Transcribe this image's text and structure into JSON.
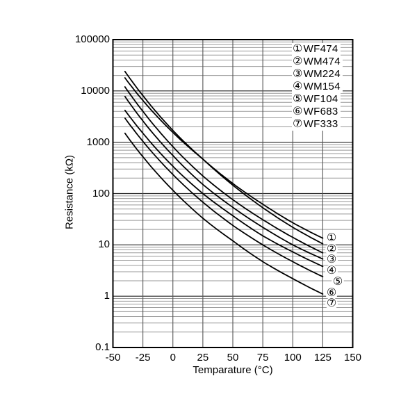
{
  "chart_data": {
    "type": "line",
    "title": "",
    "xlabel": "Temparature (°C)",
    "ylabel": "Resistance (kΩ)",
    "x_scale": "linear",
    "y_scale": "log",
    "xlim": [
      -50,
      150
    ],
    "ylim": [
      0.1,
      100000
    ],
    "x_ticks": [
      -50,
      -25,
      0,
      25,
      50,
      75,
      100,
      125,
      150
    ],
    "x_tick_labels": [
      "-50",
      "-25",
      "0",
      "25",
      "50",
      "75",
      "100",
      "125",
      "150"
    ],
    "y_tick_values": [
      100000,
      10000,
      1000,
      100,
      10,
      1,
      0.1
    ],
    "y_tick_labels": [
      "100000",
      "10000",
      "1000",
      "100",
      "10",
      "1",
      "0.1"
    ],
    "grid": {
      "major": true,
      "minor": true
    },
    "legend_position": "top-right-inside",
    "temperatures": [
      -40,
      -25,
      0,
      25,
      50,
      75,
      100,
      125
    ],
    "series": [
      {
        "index": "①",
        "name": "WF474",
        "values": [
          24000,
          8100,
          1700,
          470,
          157,
          62,
          27,
          13.5
        ]
      },
      {
        "index": "②",
        "name": "WM474",
        "values": [
          18000,
          6500,
          1550,
          470,
          146,
          53,
          22,
          10.5
        ]
      },
      {
        "index": "③",
        "name": "WM224",
        "values": [
          12000,
          4000,
          820,
          220,
          76,
          31,
          14,
          7.0
        ]
      },
      {
        "index": "④",
        "name": "WM154",
        "values": [
          7800,
          2600,
          550,
          150,
          54,
          22,
          10,
          5.3
        ]
      },
      {
        "index": "⑤",
        "name": "WF104",
        "values": [
          4200,
          1500,
          340,
          100,
          37,
          15,
          7.3,
          3.8
        ]
      },
      {
        "index": "⑥",
        "name": "WF683",
        "values": [
          2960,
          1040,
          235,
          68,
          24,
          10,
          4.7,
          2.4
        ]
      },
      {
        "index": "⑦",
        "name": "WF333",
        "values": [
          1500,
          520,
          116,
          33,
          12,
          4.7,
          2.2,
          1.1
        ]
      }
    ],
    "colors": {
      "curve": "#000000",
      "frame": "#000000",
      "grid_major": "#222222",
      "grid_minor": "#999999",
      "grid_vertical": "#555555",
      "text": "#000000",
      "background": "#ffffff"
    }
  }
}
